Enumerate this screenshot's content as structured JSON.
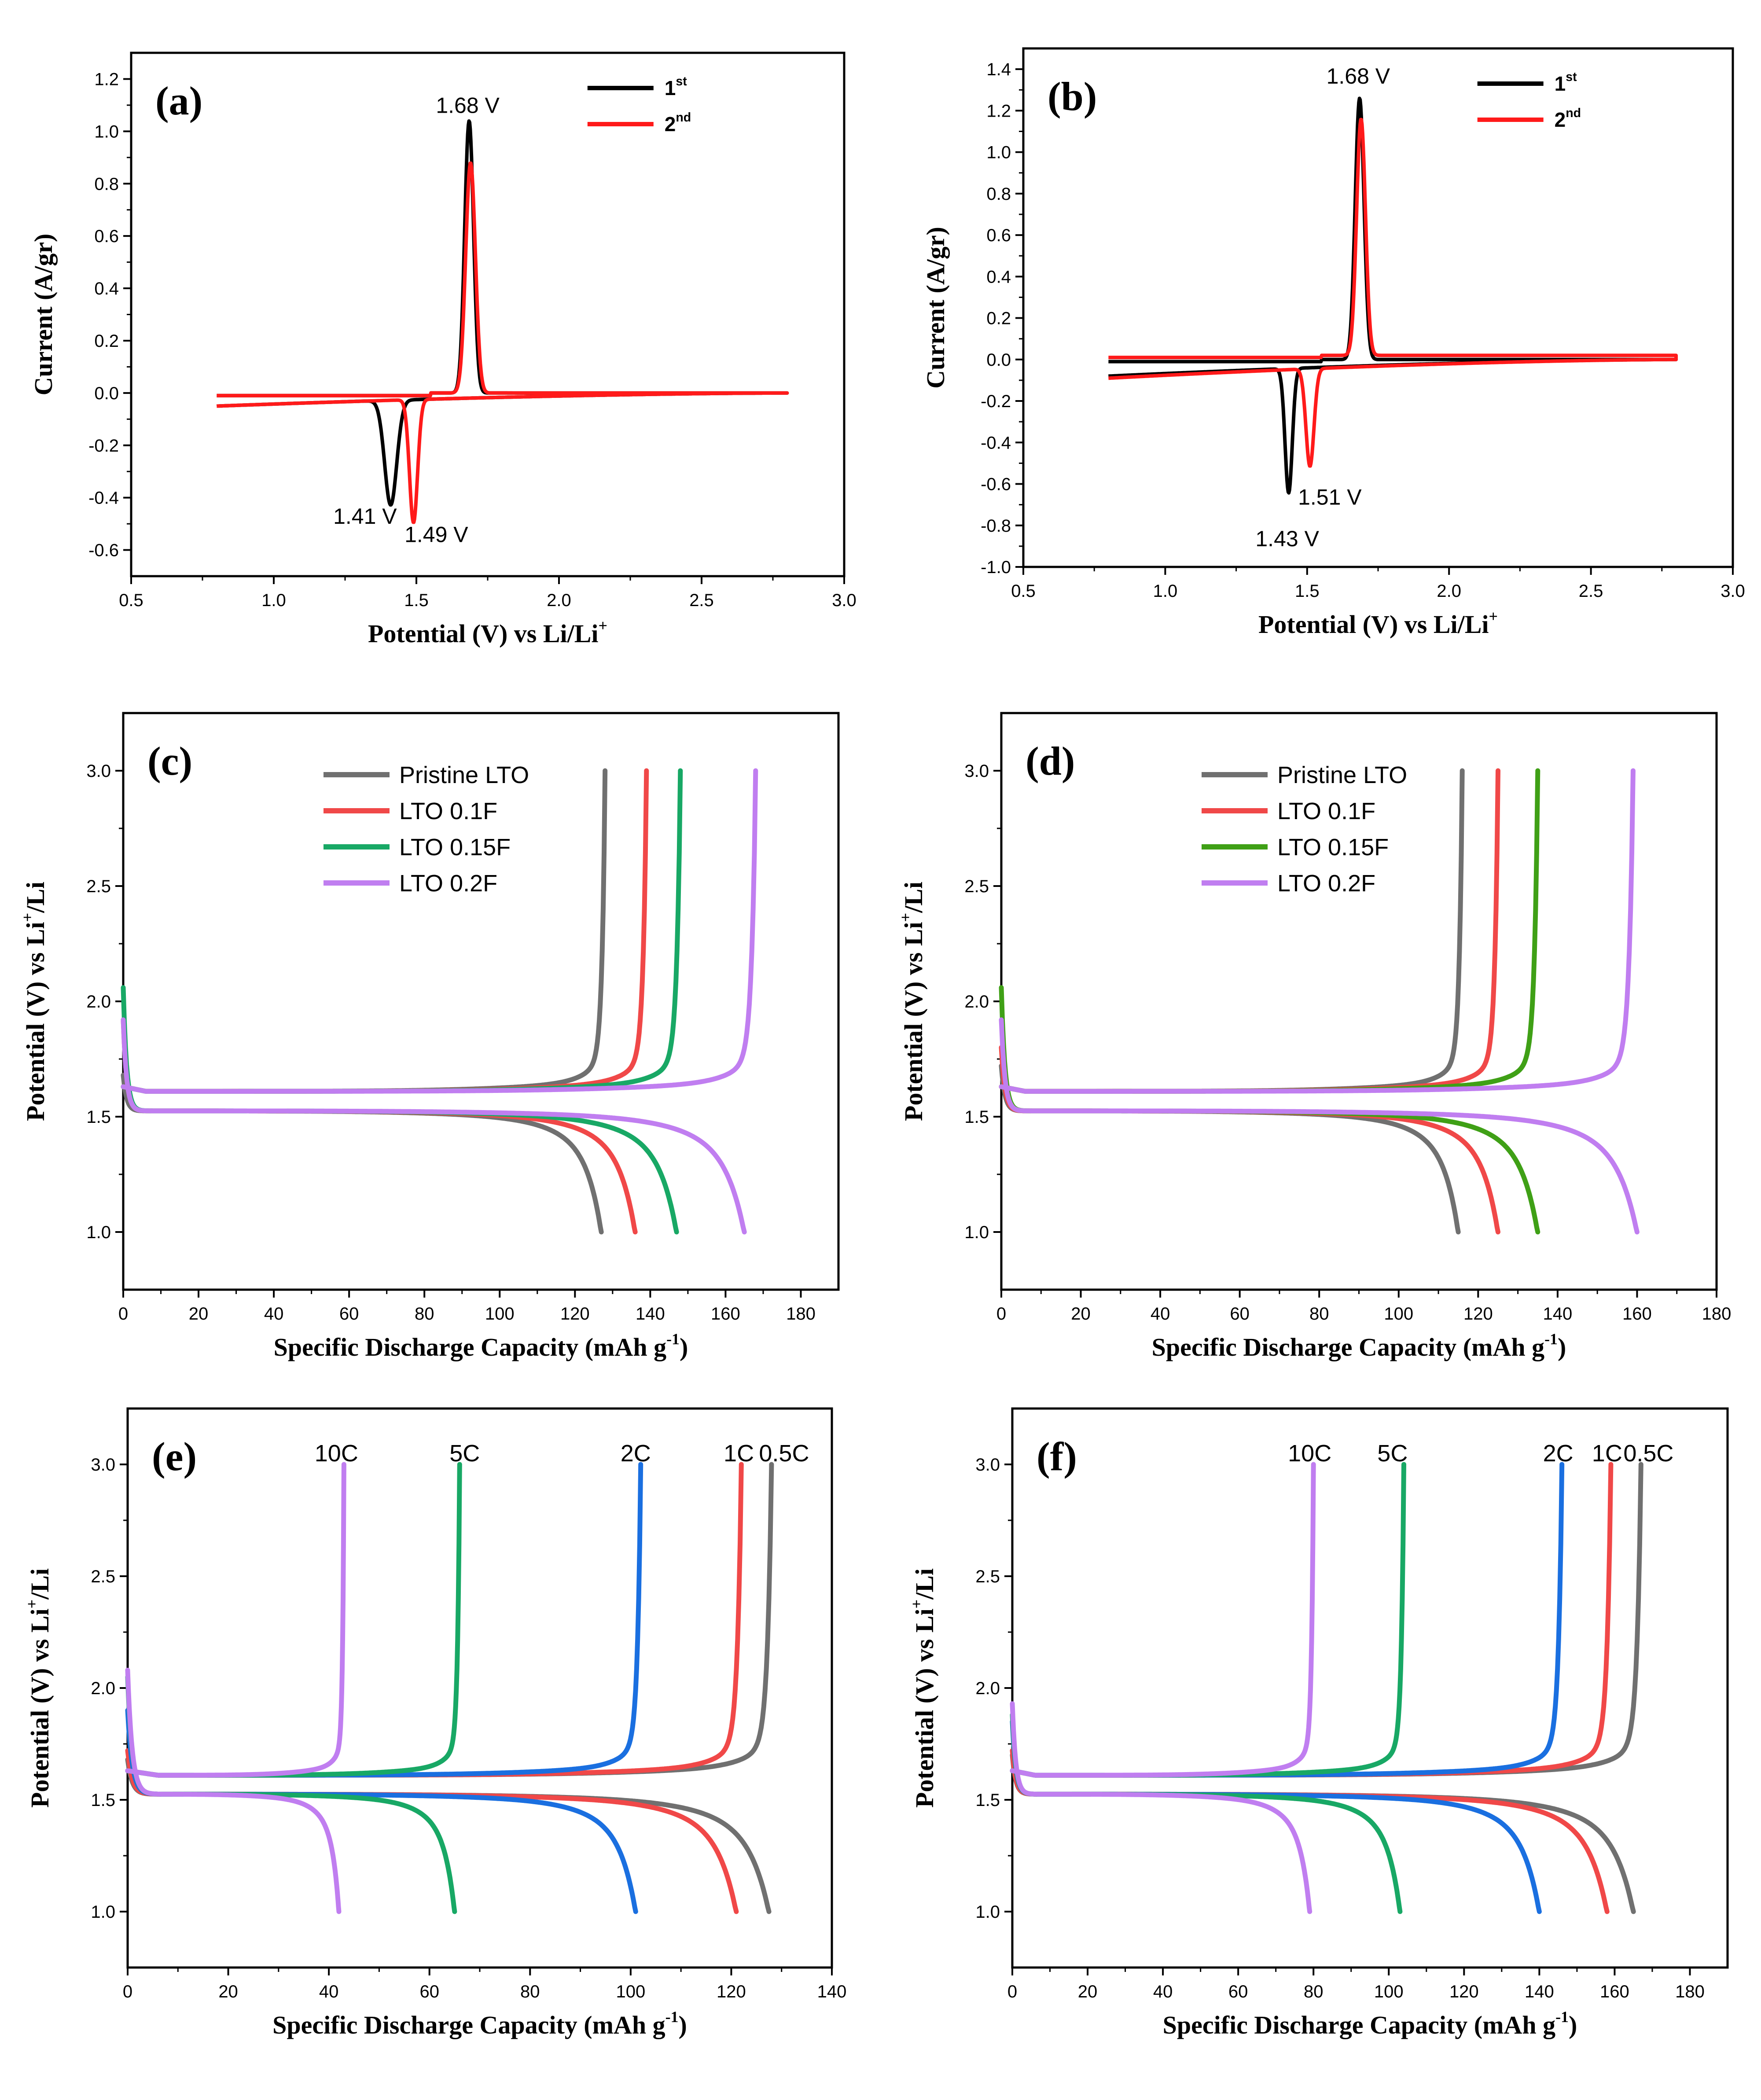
{
  "colors": {
    "black": "#000000",
    "red": "#ff1a1a",
    "gray": "#707070",
    "red_soft": "#f04848",
    "green": "#18a865",
    "green_d": "#3fa016",
    "purple": "#c07ef0",
    "blue": "#1a6fe0"
  },
  "chart_data": [
    {
      "id": "a",
      "type": "line",
      "letter": "(a)",
      "xlabel": "Potential (V) vs Li/Li",
      "xlabel_sup": "+",
      "ylabel": "Current (A/gr)",
      "xlim": [
        0.5,
        3.0
      ],
      "ylim": [
        -0.7,
        1.3
      ],
      "xticks": [
        0.5,
        1.0,
        1.5,
        2.0,
        2.5,
        3.0
      ],
      "yticks": [
        -0.6,
        -0.4,
        -0.2,
        0.0,
        0.2,
        0.4,
        0.6,
        0.8,
        1.0,
        1.2
      ],
      "xtick_decimals": 1,
      "ytick_decimals": 1,
      "legend": [
        {
          "label": "1",
          "sup": "st",
          "color": "black"
        },
        {
          "label": "2",
          "sup": "nd",
          "color": "red"
        }
      ],
      "annotations": [
        {
          "text": "1.68 V",
          "x": 1.68,
          "y": 1.07
        },
        {
          "text": "1.41 V",
          "x": 1.32,
          "y": -0.5
        },
        {
          "text": "1.49 V",
          "x": 1.57,
          "y": -0.57
        }
      ],
      "cv_series": [
        {
          "name": "1st",
          "color": "black",
          "peaks": [
            {
              "x": 1.685,
              "h": 1.04,
              "w": 0.022
            },
            {
              "x": 1.41,
              "h": -0.4,
              "w": 0.03
            }
          ],
          "ox_base": 0.0,
          "red_start": -0.05,
          "red_end": 0.0
        },
        {
          "name": "2nd",
          "color": "red",
          "peaks": [
            {
              "x": 1.69,
              "h": 0.88,
              "w": 0.024
            },
            {
              "x": 1.49,
              "h": -0.47,
              "w": 0.02
            }
          ],
          "ox_base": 0.0,
          "red_start": -0.05,
          "red_end": 0.0
        }
      ],
      "x_range": [
        0.8,
        2.8
      ]
    },
    {
      "id": "b",
      "type": "line",
      "letter": "(b)",
      "xlabel": "Potential (V) vs Li/Li",
      "xlabel_sup": "+",
      "ylabel": "Current (A/gr)",
      "xlim": [
        0.5,
        3.0
      ],
      "ylim": [
        -1.0,
        1.5
      ],
      "xticks": [
        0.5,
        1.0,
        1.5,
        2.0,
        2.5,
        3.0
      ],
      "yticks": [
        -1.0,
        -0.8,
        -0.6,
        -0.4,
        -0.2,
        0.0,
        0.2,
        0.4,
        0.6,
        0.8,
        1.0,
        1.2,
        1.4
      ],
      "xtick_decimals": 1,
      "ytick_decimals": 1,
      "legend": [
        {
          "label": "1",
          "sup": "st",
          "color": "black"
        },
        {
          "label": "2",
          "sup": "nd",
          "color": "red"
        }
      ],
      "annotations": [
        {
          "text": "1.68 V",
          "x": 1.68,
          "y": 1.33
        },
        {
          "text": "1.51 V",
          "x": 1.58,
          "y": -0.7
        },
        {
          "text": "1.43 V",
          "x": 1.43,
          "y": -0.9
        }
      ],
      "cv_series": [
        {
          "name": "1st",
          "color": "black",
          "peaks": [
            {
              "x": 1.685,
              "h": 1.26,
              "w": 0.022
            },
            {
              "x": 1.435,
              "h": -0.6,
              "w": 0.018
            }
          ],
          "ox_base": 0.0,
          "red_start": -0.08,
          "red_end": 0.0
        },
        {
          "name": "2nd",
          "color": "red",
          "peaks": [
            {
              "x": 1.69,
              "h": 1.14,
              "w": 0.022
            },
            {
              "x": 1.51,
              "h": -0.47,
              "w": 0.02
            }
          ],
          "ox_base": 0.02,
          "red_start": -0.09,
          "red_end": 0.0
        }
      ],
      "x_range": [
        0.8,
        2.8
      ]
    },
    {
      "id": "c",
      "type": "line",
      "letter": "(c)",
      "xlabel": "Specific Discharge Capacity (mAh g",
      "xlabel_sup": "-1",
      "xlabel_tail": ")",
      "ylabel": "Potential (V) vs Li",
      "ylabel_sup": "+",
      "ylabel_tail": "/Li",
      "xlim": [
        0,
        190
      ],
      "ylim": [
        0.75,
        3.25
      ],
      "xticks": [
        0,
        20,
        40,
        60,
        80,
        100,
        120,
        140,
        160,
        180
      ],
      "yticks": [
        1.0,
        1.5,
        2.0,
        2.5,
        3.0
      ],
      "xtick_decimals": 0,
      "ytick_decimals": 1,
      "legend_style": "box",
      "legend": [
        {
          "label": "Pristine LTO",
          "color": "gray"
        },
        {
          "label": "LTO 0.1F",
          "color": "red_soft"
        },
        {
          "label": "LTO 0.15F",
          "color": "green"
        },
        {
          "label": "LTO 0.2F",
          "color": "purple"
        }
      ],
      "gcd_series": [
        {
          "name": "Pristine LTO",
          "color": "gray",
          "charge_cap": 128,
          "discharge_cap": 127,
          "start_v": 1.68
        },
        {
          "name": "LTO 0.1F",
          "color": "red_soft",
          "charge_cap": 139,
          "discharge_cap": 136,
          "start_v": 1.92
        },
        {
          "name": "LTO 0.15F",
          "color": "green",
          "charge_cap": 148,
          "discharge_cap": 147,
          "start_v": 2.06
        },
        {
          "name": "LTO 0.2F",
          "color": "purple",
          "charge_cap": 168,
          "discharge_cap": 165,
          "start_v": 1.92
        }
      ]
    },
    {
      "id": "d",
      "type": "line",
      "letter": "(d)",
      "xlabel": "Specific Discharge Capacity (mAh g",
      "xlabel_sup": "-1",
      "xlabel_tail": ")",
      "ylabel": "Potential (V) vs Li",
      "ylabel_sup": "+",
      "ylabel_tail": "/Li",
      "xlim": [
        0,
        180
      ],
      "ylim": [
        0.75,
        3.25
      ],
      "xticks": [
        0,
        20,
        40,
        60,
        80,
        100,
        120,
        140,
        160,
        180
      ],
      "yticks": [
        1.0,
        1.5,
        2.0,
        2.5,
        3.0
      ],
      "xtick_decimals": 0,
      "ytick_decimals": 1,
      "legend_style": "box",
      "legend": [
        {
          "label": "Pristine LTO",
          "color": "gray"
        },
        {
          "label": "LTO 0.1F",
          "color": "red_soft"
        },
        {
          "label": "LTO 0.15F",
          "color": "green_d"
        },
        {
          "label": "LTO 0.2F",
          "color": "purple"
        }
      ],
      "gcd_series": [
        {
          "name": "Pristine LTO",
          "color": "gray",
          "charge_cap": 116,
          "discharge_cap": 115,
          "start_v": 1.72
        },
        {
          "name": "LTO 0.1F",
          "color": "red_soft",
          "charge_cap": 125,
          "discharge_cap": 125,
          "start_v": 1.8
        },
        {
          "name": "LTO 0.15F",
          "color": "green_d",
          "charge_cap": 135,
          "discharge_cap": 135,
          "start_v": 2.06
        },
        {
          "name": "LTO 0.2F",
          "color": "purple",
          "charge_cap": 159,
          "discharge_cap": 160,
          "start_v": 1.92
        }
      ]
    },
    {
      "id": "e",
      "type": "line",
      "letter": "(e)",
      "xlabel": "Specific Discharge Capacity (mAh g",
      "xlabel_sup": "-1",
      "xlabel_tail": ")",
      "ylabel": "Potential (V) vs Li",
      "ylabel_sup": "+",
      "ylabel_tail": "/Li",
      "xlim": [
        0,
        140
      ],
      "ylim": [
        0.75,
        3.25
      ],
      "xticks": [
        0,
        20,
        40,
        60,
        80,
        100,
        120,
        140
      ],
      "yticks": [
        1.0,
        1.5,
        2.0,
        2.5,
        3.0
      ],
      "xtick_decimals": 0,
      "ytick_decimals": 1,
      "rate_labels": [
        {
          "text": "10C",
          "x": 41.5
        },
        {
          "text": "5C",
          "x": 67
        },
        {
          "text": "2C",
          "x": 101
        },
        {
          "text": "1C",
          "x": 121.5
        },
        {
          "text": "0.5C",
          "x": 130.5
        }
      ],
      "gcd_series": [
        {
          "name": "0.5C",
          "color": "gray",
          "charge_cap": 128,
          "discharge_cap": 127.5,
          "start_v": 1.68
        },
        {
          "name": "1C",
          "color": "red_soft",
          "charge_cap": 122,
          "discharge_cap": 121,
          "start_v": 1.72
        },
        {
          "name": "2C",
          "color": "blue",
          "charge_cap": 102,
          "discharge_cap": 101,
          "start_v": 1.9
        },
        {
          "name": "5C",
          "color": "green",
          "charge_cap": 66,
          "discharge_cap": 65,
          "start_v": 2.05
        },
        {
          "name": "10C",
          "color": "purple",
          "charge_cap": 43,
          "discharge_cap": 42,
          "start_v": 2.08
        }
      ]
    },
    {
      "id": "f",
      "type": "line",
      "letter": "(f)",
      "xlabel": "Specific Discharge Capacity (mAh g",
      "xlabel_sup": "-1",
      "xlabel_tail": ")",
      "ylabel": "Potential (V) vs Li",
      "ylabel_sup": "+",
      "ylabel_tail": "/Li",
      "xlim": [
        0,
        190
      ],
      "ylim": [
        0.75,
        3.25
      ],
      "xticks": [
        0,
        20,
        40,
        60,
        80,
        100,
        120,
        140,
        160,
        180
      ],
      "yticks": [
        1.0,
        1.5,
        2.0,
        2.5,
        3.0
      ],
      "xtick_decimals": 0,
      "ytick_decimals": 1,
      "rate_labels": [
        {
          "text": "10C",
          "x": 79
        },
        {
          "text": "5C",
          "x": 101
        },
        {
          "text": "2C",
          "x": 145
        },
        {
          "text": "1C",
          "x": 158
        },
        {
          "text": "0.5C",
          "x": 169
        }
      ],
      "gcd_series": [
        {
          "name": "0.5C",
          "color": "gray",
          "charge_cap": 167,
          "discharge_cap": 165,
          "start_v": 1.7
        },
        {
          "name": "1C",
          "color": "red_soft",
          "charge_cap": 159,
          "discharge_cap": 158,
          "start_v": 1.72
        },
        {
          "name": "2C",
          "color": "blue",
          "charge_cap": 146,
          "discharge_cap": 140,
          "start_v": 1.85
        },
        {
          "name": "5C",
          "color": "green",
          "charge_cap": 104,
          "discharge_cap": 103,
          "start_v": 1.88
        },
        {
          "name": "10C",
          "color": "purple",
          "charge_cap": 80,
          "discharge_cap": 79,
          "start_v": 1.93
        }
      ]
    }
  ]
}
